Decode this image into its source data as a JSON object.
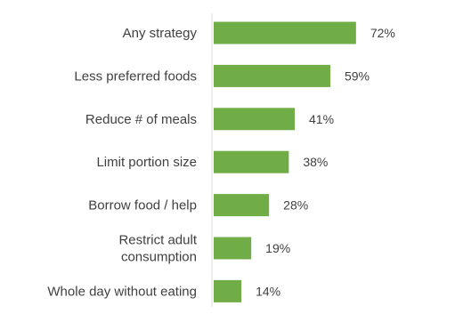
{
  "chart_data": {
    "type": "bar",
    "orientation": "horizontal",
    "categories": [
      [
        "Any strategy"
      ],
      [
        "Less preferred foods"
      ],
      [
        "Reduce # of meals"
      ],
      [
        "Limit portion size"
      ],
      [
        "Borrow food / help"
      ],
      [
        "Restrict adult",
        "consumption"
      ],
      [
        "Whole day without eating"
      ]
    ],
    "values": [
      72,
      59,
      41,
      38,
      28,
      19,
      14
    ],
    "value_labels": [
      "72%",
      "59%",
      "41%",
      "38%",
      "28%",
      "19%",
      "14%"
    ],
    "xlim": [
      0,
      100
    ],
    "grid": false,
    "legend": "none",
    "colors": {
      "bar": "#70AD47",
      "axis": "#D9D9D9",
      "text": "#404040"
    }
  }
}
